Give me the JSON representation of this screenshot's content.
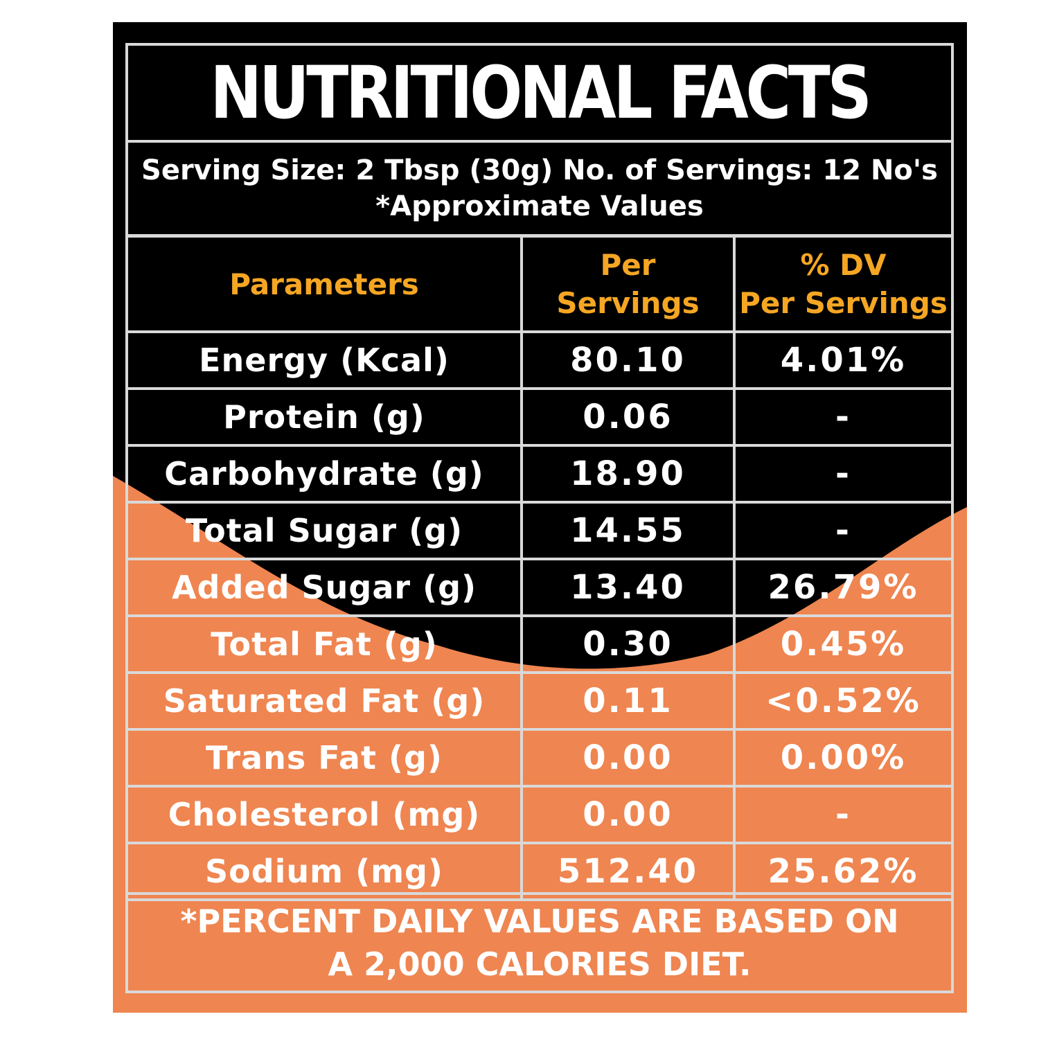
{
  "header": {
    "title": "NUTRITIONAL FACTS",
    "serving_line": "Serving Size: 2 Tbsp (30g) No. of Servings: 12 No's",
    "approx_line": "*Approximate Values"
  },
  "table": {
    "columns": {
      "parameters": "Parameters",
      "per_servings": [
        "Per",
        "Servings"
      ],
      "dv": [
        "% DV",
        "Per Servings"
      ]
    },
    "rows": [
      {
        "parameter": "Energy (Kcal)",
        "per_serving": "80.10",
        "dv": "4.01%"
      },
      {
        "parameter": "Protein (g)",
        "per_serving": "0.06",
        "dv": "-"
      },
      {
        "parameter": "Carbohydrate (g)",
        "per_serving": "18.90",
        "dv": "-"
      },
      {
        "parameter": "Total Sugar (g)",
        "per_serving": "14.55",
        "dv": "-"
      },
      {
        "parameter": "Added Sugar (g)",
        "per_serving": "13.40",
        "dv": "26.79%"
      },
      {
        "parameter": "Total Fat (g)",
        "per_serving": "0.30",
        "dv": "0.45%"
      },
      {
        "parameter": "Saturated Fat (g)",
        "per_serving": "0.11",
        "dv": "<0.52%"
      },
      {
        "parameter": "Trans Fat (g)",
        "per_serving": "0.00",
        "dv": "0.00%"
      },
      {
        "parameter": "Cholesterol (mg)",
        "per_serving": "0.00",
        "dv": "-"
      },
      {
        "parameter": "Sodium (mg)",
        "per_serving": "512.40",
        "dv": "25.62%"
      }
    ]
  },
  "footnote": {
    "line1": "*PERCENT DAILY VALUES ARE BASED ON",
    "line2": "A 2,000 CALORIES DIET."
  },
  "colors": {
    "dark_background": "#000000",
    "orange_background": "#ef8550",
    "header_accent": "#f5a623",
    "grid_lines": "#d9d9d9",
    "text": "#ffffff"
  }
}
